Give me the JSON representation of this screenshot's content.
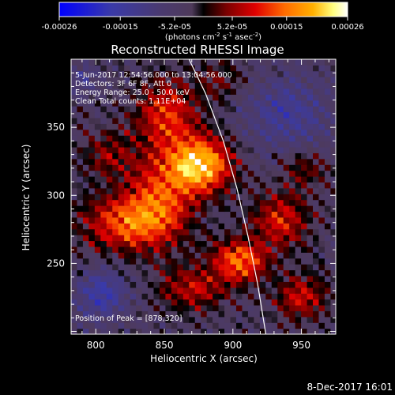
{
  "footer": {
    "timestamp": "8-Dec-2017 16:01"
  },
  "colors": {
    "background": "#000000",
    "text": "#ffffff",
    "limb": "#ffffff",
    "colormap": [
      "#0000ff",
      "#3a3aa8",
      "#4a3a70",
      "#4e3a5a",
      "#000000",
      "#7a0000",
      "#e00000",
      "#ff6a00",
      "#ffb000",
      "#ffff80",
      "#ffffff"
    ]
  },
  "colorbar": {
    "ticks": [
      "-0.00026",
      "-0.00015",
      "-5.2e-05",
      "5.2e-05",
      "0.00015",
      "0.00026"
    ],
    "tick_values": [
      -0.00026,
      -0.00015,
      -5.2e-05,
      5.2e-05,
      0.00015,
      0.00026
    ],
    "range": [
      -0.00026,
      0.00026
    ],
    "unit_main": "(photons cm",
    "unit_sup1": "-2",
    "unit_mid": " s",
    "unit_sup2": "-1",
    "unit_end": " asec",
    "unit_sup3": "-2",
    "unit_close": ")"
  },
  "chart_data": {
    "type": "heatmap",
    "title": "Reconstructed RHESSI Image",
    "xlabel": "Heliocentric X (arcsec)",
    "ylabel": "Heliocentric Y (arcsec)",
    "xlim": [
      782,
      975
    ],
    "ylim": [
      198,
      400
    ],
    "xticks": [
      800,
      850,
      900,
      950
    ],
    "yticks": [
      250,
      300,
      350
    ],
    "annotations": [
      "5-Jun-2017 12:54:56.000 to 13:04:56.000",
      "Detectors: 3F 6F 8F, Att 0",
      "Energy Range: 25.0 - 50.0 keV",
      "Clean    Total counts: 1.11E+04",
      "Position of Peak = [878,320]"
    ],
    "peak": [
      878,
      320
    ],
    "limb_path": [
      [
        868,
        400
      ],
      [
        880,
        375
      ],
      [
        893,
        340
      ],
      [
        903,
        305
      ],
      [
        911,
        270
      ],
      [
        918,
        235
      ],
      [
        924,
        198
      ]
    ],
    "sources": [
      {
        "x": 876,
        "y": 323,
        "sx": 22,
        "sy": 20,
        "amp": 0.000255
      },
      {
        "x": 820,
        "y": 280,
        "sx": 30,
        "sy": 20,
        "amp": 0.00016
      },
      {
        "x": 847,
        "y": 297,
        "sx": 24,
        "sy": 32,
        "amp": 0.00015
      },
      {
        "x": 852,
        "y": 360,
        "sx": 22,
        "sy": 26,
        "amp": 0.00014
      },
      {
        "x": 905,
        "y": 252,
        "sx": 20,
        "sy": 16,
        "amp": 0.00018
      },
      {
        "x": 935,
        "y": 282,
        "sx": 20,
        "sy": 20,
        "amp": 0.00013
      },
      {
        "x": 950,
        "y": 225,
        "sx": 18,
        "sy": 16,
        "amp": 0.00012
      },
      {
        "x": 870,
        "y": 232,
        "sx": 24,
        "sy": 16,
        "amp": 0.00011
      },
      {
        "x": 810,
        "y": 330,
        "sx": 20,
        "sy": 18,
        "amp": 8e-05
      },
      {
        "x": 952,
        "y": 320,
        "sx": 16,
        "sy": 14,
        "amp": 7e-05
      },
      {
        "x": 890,
        "y": 385,
        "sx": 16,
        "sy": 14,
        "amp": 6e-05
      },
      {
        "x": 940,
        "y": 360,
        "sx": 28,
        "sy": 26,
        "amp": -9.5e-05
      },
      {
        "x": 805,
        "y": 228,
        "sx": 18,
        "sy": 18,
        "amp": -0.00012
      },
      {
        "x": 790,
        "y": 385,
        "sx": 12,
        "sy": 12,
        "amp": -6e-05
      }
    ]
  }
}
